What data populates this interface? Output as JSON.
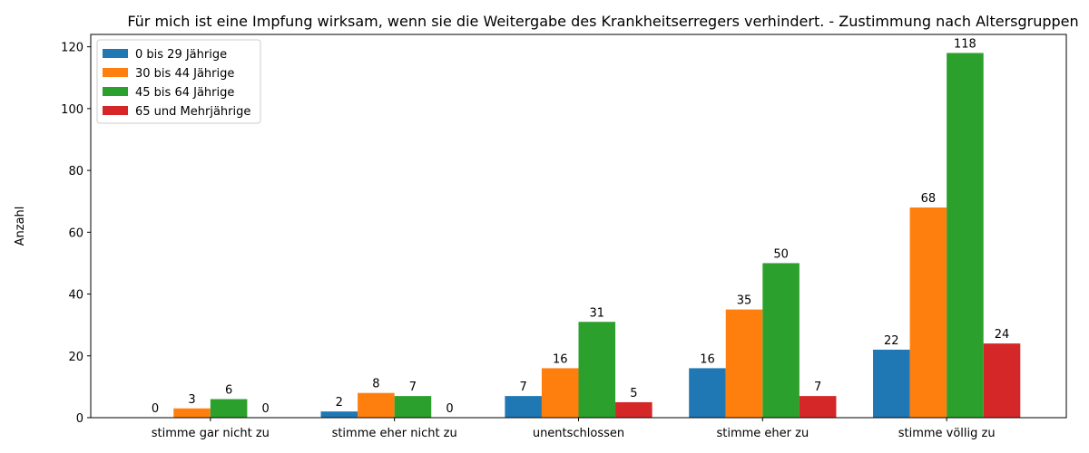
{
  "chart_data": {
    "type": "bar",
    "title": "Für mich ist eine Impfung wirksam, wenn sie die Weitergabe des Krankheitserregers verhindert. - Zustimmung nach Altersgruppen",
    "xlabel": "",
    "ylabel": "Anzahl",
    "categories": [
      "stimme gar nicht zu",
      "stimme eher nicht zu",
      "unentschlossen",
      "stimme eher zu",
      "stimme völlig zu"
    ],
    "series": [
      {
        "name": "0 bis 29 Jährige",
        "color": "#1f77b4",
        "values": [
          0,
          2,
          7,
          16,
          22
        ]
      },
      {
        "name": "30 bis 44 Jährige",
        "color": "#ff7f0e",
        "values": [
          3,
          8,
          16,
          35,
          68
        ]
      },
      {
        "name": "45 bis 64 Jährige",
        "color": "#2ca02c",
        "values": [
          6,
          7,
          31,
          50,
          118
        ]
      },
      {
        "name": "65 und Mehrjährige",
        "color": "#d62728",
        "values": [
          0,
          0,
          5,
          7,
          24
        ]
      }
    ],
    "ylim": [
      0,
      124
    ],
    "yticks": [
      0,
      20,
      40,
      60,
      80,
      100,
      120
    ],
    "grid": false,
    "legend_position": "upper left"
  }
}
